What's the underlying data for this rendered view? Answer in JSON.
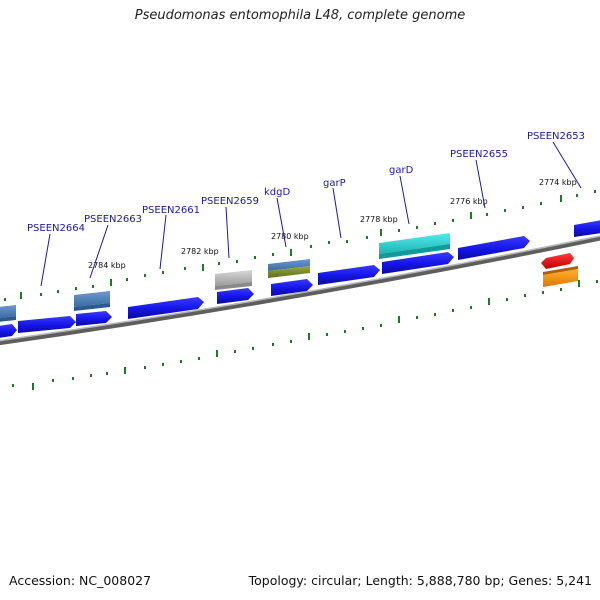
{
  "title": "Pseudomonas entomophila L48, complete genome",
  "footer": {
    "accession": "Accession: NC_008027",
    "summary": "Topology: circular; Length: 5,888,780 bp; Genes: 5,241"
  },
  "colors": {
    "cds": "#1414e6",
    "backbone": "#7a7a7a",
    "tick": "#1e7d1e",
    "label": "#1a1aa6"
  },
  "kbp_labels": [
    "2784 kbp",
    "2782 kbp",
    "2780 kbp",
    "2778 kbp",
    "2776 kbp",
    "2774 kbp"
  ],
  "gene_labels": [
    "PSEEN2664",
    "PSEEN2663",
    "PSEEN2661",
    "PSEEN2659",
    "kdgD",
    "garP",
    "garD",
    "PSEEN2655",
    "PSEEN2653"
  ]
}
